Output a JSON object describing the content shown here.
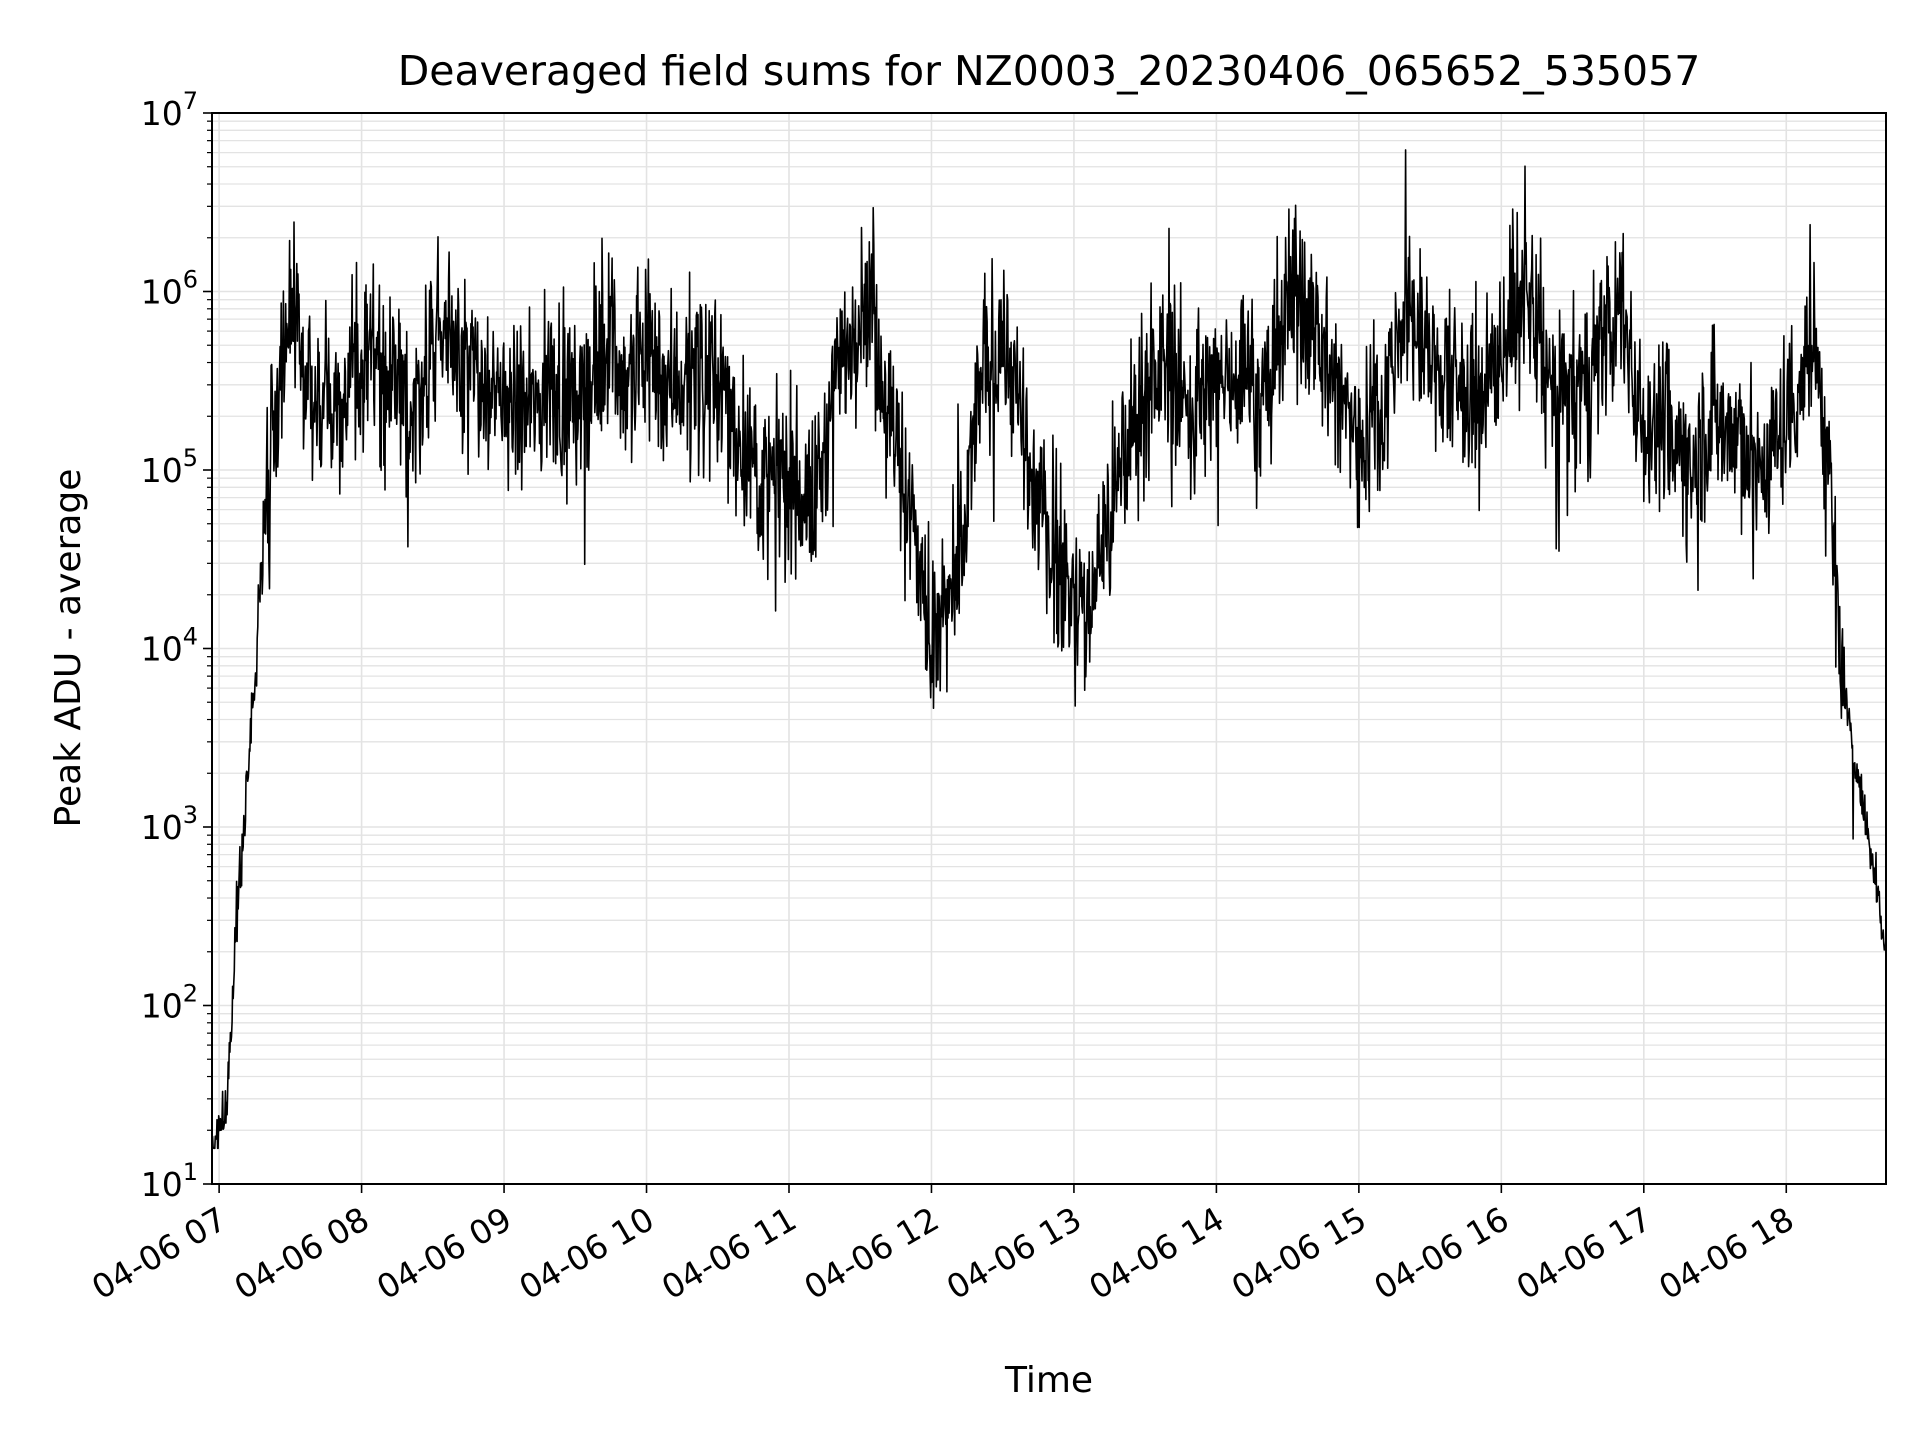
{
  "chart_data": {
    "type": "line",
    "title": "Deaveraged field sums for NZ0003_20230406_065652_535057",
    "xlabel": "Time",
    "ylabel": "Peak ADU - average",
    "x_axis": {
      "type": "time",
      "range": [
        "2023-04-06 06:57",
        "2023-04-06 18:42"
      ],
      "ticks": [
        "2023-04-06 07:00",
        "2023-04-06 08:00",
        "2023-04-06 09:00",
        "2023-04-06 10:00",
        "2023-04-06 11:00",
        "2023-04-06 12:00",
        "2023-04-06 13:00",
        "2023-04-06 14:00",
        "2023-04-06 15:00",
        "2023-04-06 16:00",
        "2023-04-06 17:00",
        "2023-04-06 18:00"
      ],
      "tick_labels": [
        "04-06 07",
        "04-06 08",
        "04-06 09",
        "04-06 10",
        "04-06 11",
        "04-06 12",
        "04-06 13",
        "04-06 14",
        "04-06 15",
        "04-06 16",
        "04-06 17",
        "04-06 18"
      ],
      "tick_rotation_deg": 30
    },
    "y_axis": {
      "scale": "log",
      "ylim": [
        10,
        10000000
      ],
      "major_ticks": [
        10,
        100,
        1000,
        10000,
        100000,
        1000000,
        10000000
      ],
      "tick_base": "10",
      "tick_exponents": [
        "1",
        "2",
        "3",
        "4",
        "5",
        "6",
        "7"
      ]
    },
    "grid": {
      "major": true,
      "minor_y": true,
      "color": "#e3e3e3"
    },
    "line_color": "#000000",
    "series": [
      {
        "x": [
          "2023-04-06 06:57",
          "2023-04-06 07:00",
          "2023-04-06 07:03",
          "2023-04-06 07:05",
          "2023-04-06 07:07",
          "2023-04-06 07:10",
          "2023-04-06 07:12",
          "2023-04-06 07:15",
          "2023-04-06 07:17",
          "2023-04-06 07:20",
          "2023-04-06 07:25",
          "2023-04-06 07:30",
          "2023-04-06 07:35",
          "2023-04-06 07:40",
          "2023-04-06 07:45",
          "2023-04-06 07:50",
          "2023-04-06 08:00",
          "2023-04-06 08:05",
          "2023-04-06 08:10",
          "2023-04-06 08:20",
          "2023-04-06 08:30",
          "2023-04-06 08:40",
          "2023-04-06 08:50",
          "2023-04-06 09:00",
          "2023-04-06 09:10",
          "2023-04-06 09:20",
          "2023-04-06 09:30",
          "2023-04-06 09:40",
          "2023-04-06 09:45",
          "2023-04-06 09:50",
          "2023-04-06 10:00",
          "2023-04-06 10:05",
          "2023-04-06 10:10",
          "2023-04-06 10:20",
          "2023-04-06 10:30",
          "2023-04-06 10:40",
          "2023-04-06 10:50",
          "2023-04-06 11:00",
          "2023-04-06 11:10",
          "2023-04-06 11:20",
          "2023-04-06 11:30",
          "2023-04-06 11:35",
          "2023-04-06 11:40",
          "2023-04-06 11:50",
          "2023-04-06 11:55",
          "2023-04-06 12:00",
          "2023-04-06 12:10",
          "2023-04-06 12:15",
          "2023-04-06 12:20",
          "2023-04-06 12:30",
          "2023-04-06 12:35",
          "2023-04-06 12:40",
          "2023-04-06 12:50",
          "2023-04-06 13:00",
          "2023-04-06 13:05",
          "2023-04-06 13:10",
          "2023-04-06 13:20",
          "2023-04-06 13:30",
          "2023-04-06 13:40",
          "2023-04-06 13:50",
          "2023-04-06 14:00",
          "2023-04-06 14:10",
          "2023-04-06 14:20",
          "2023-04-06 14:30",
          "2023-04-06 14:40",
          "2023-04-06 14:50",
          "2023-04-06 15:00",
          "2023-04-06 15:10",
          "2023-04-06 15:20",
          "2023-04-06 15:30",
          "2023-04-06 15:40",
          "2023-04-06 15:50",
          "2023-04-06 16:00",
          "2023-04-06 16:10",
          "2023-04-06 16:20",
          "2023-04-06 16:30",
          "2023-04-06 16:40",
          "2023-04-06 16:50",
          "2023-04-06 17:00",
          "2023-04-06 17:10",
          "2023-04-06 17:20",
          "2023-04-06 17:30",
          "2023-04-06 17:40",
          "2023-04-06 17:50",
          "2023-04-06 18:00",
          "2023-04-06 18:05",
          "2023-04-06 18:10",
          "2023-04-06 18:15",
          "2023-04-06 18:20",
          "2023-04-06 18:25",
          "2023-04-06 18:30",
          "2023-04-06 18:35",
          "2023-04-06 18:40",
          "2023-04-06 18:42"
        ],
        "y": [
          18,
          20,
          30,
          60,
          300,
          1000,
          2000,
          6000,
          20000,
          60000,
          300000,
          900000,
          400000,
          250000,
          300000,
          200000,
          400000,
          600000,
          300000,
          200000,
          500000,
          600000,
          300000,
          250000,
          200000,
          300000,
          250000,
          400000,
          600000,
          300000,
          500000,
          400000,
          300000,
          400000,
          300000,
          150000,
          80000,
          100000,
          60000,
          300000,
          900000,
          1000000,
          300000,
          70000,
          30000,
          10000,
          20000,
          60000,
          300000,
          600000,
          300000,
          100000,
          40000,
          20000,
          15000,
          30000,
          100000,
          300000,
          400000,
          200000,
          300000,
          400000,
          250000,
          900000,
          700000,
          300000,
          150000,
          250000,
          800000,
          400000,
          300000,
          200000,
          500000,
          1000000,
          300000,
          250000,
          400000,
          800000,
          200000,
          150000,
          120000,
          200000,
          150000,
          100000,
          200000,
          300000,
          500000,
          250000,
          30000,
          5000,
          2000,
          800,
          300,
          200
        ]
      }
    ]
  }
}
